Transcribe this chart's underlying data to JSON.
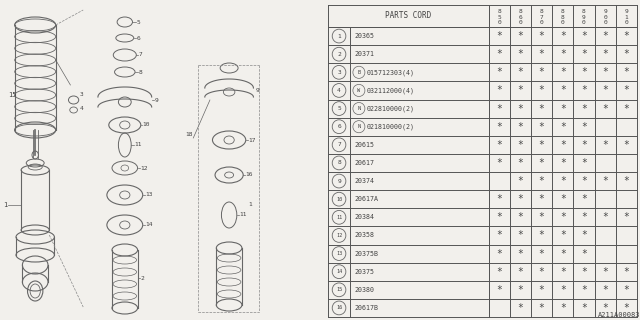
{
  "bg_color": "#f2f0ec",
  "line_color": "#666666",
  "text_color": "#444444",
  "parts_cord_header": "PARTS CORD",
  "year_headers": [
    "85",
    "86",
    "87",
    "88",
    "89",
    "90",
    "91"
  ],
  "rows": [
    {
      "num": 1,
      "code": "20365",
      "prefix": "",
      "stars": [
        1,
        1,
        1,
        1,
        1,
        1,
        1
      ]
    },
    {
      "num": 2,
      "code": "20371",
      "prefix": "",
      "stars": [
        1,
        1,
        1,
        1,
        1,
        1,
        1
      ]
    },
    {
      "num": 3,
      "code": "015712303(4)",
      "prefix": "B",
      "stars": [
        1,
        1,
        1,
        1,
        1,
        1,
        1
      ]
    },
    {
      "num": 4,
      "code": "032112000(4)",
      "prefix": "W",
      "stars": [
        1,
        1,
        1,
        1,
        1,
        1,
        1
      ]
    },
    {
      "num": 5,
      "code": "022810000(2)",
      "prefix": "N",
      "stars": [
        1,
        1,
        1,
        1,
        1,
        1,
        1
      ]
    },
    {
      "num": 6,
      "code": "021810000(2)",
      "prefix": "N",
      "stars": [
        1,
        1,
        1,
        1,
        1,
        0,
        0
      ]
    },
    {
      "num": 7,
      "code": "20615",
      "prefix": "",
      "stars": [
        1,
        1,
        1,
        1,
        1,
        1,
        1
      ]
    },
    {
      "num": 8,
      "code": "20617",
      "prefix": "",
      "stars": [
        1,
        1,
        1,
        1,
        1,
        0,
        0
      ]
    },
    {
      "num": 9,
      "code": "20374",
      "prefix": "",
      "stars": [
        0,
        1,
        1,
        1,
        1,
        1,
        1
      ]
    },
    {
      "num": 10,
      "code": "20617A",
      "prefix": "",
      "stars": [
        1,
        1,
        1,
        1,
        1,
        0,
        0
      ]
    },
    {
      "num": 11,
      "code": "20384",
      "prefix": "",
      "stars": [
        1,
        1,
        1,
        1,
        1,
        1,
        1
      ]
    },
    {
      "num": 12,
      "code": "20358",
      "prefix": "",
      "stars": [
        1,
        1,
        1,
        1,
        1,
        0,
        0
      ]
    },
    {
      "num": 13,
      "code": "20375B",
      "prefix": "",
      "stars": [
        1,
        1,
        1,
        1,
        1,
        0,
        0
      ]
    },
    {
      "num": 14,
      "code": "20375",
      "prefix": "",
      "stars": [
        1,
        1,
        1,
        1,
        1,
        1,
        1
      ]
    },
    {
      "num": 15,
      "code": "20380",
      "prefix": "",
      "stars": [
        1,
        1,
        1,
        1,
        1,
        1,
        1
      ]
    },
    {
      "num": 16,
      "code": "20617B",
      "prefix": "",
      "stars": [
        0,
        1,
        1,
        1,
        1,
        1,
        1
      ]
    }
  ],
  "diagram_label": "A211A00083"
}
